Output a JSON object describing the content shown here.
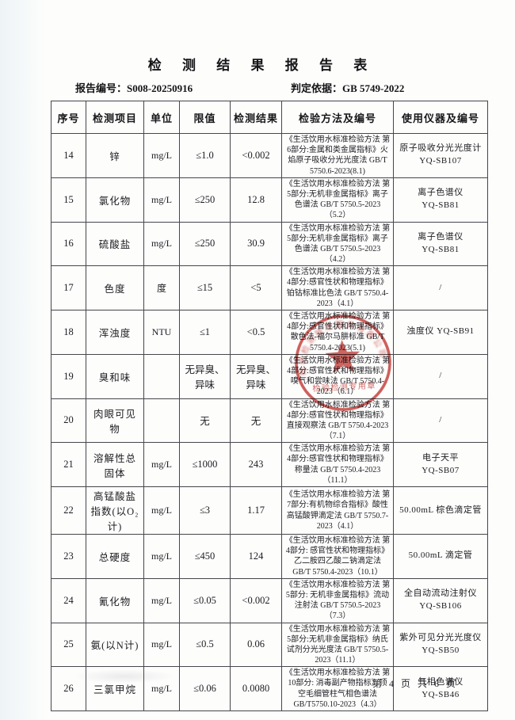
{
  "page": {
    "title": "检 测 结 果 报 告 表",
    "report_no_label": "报告编号：",
    "report_no": "S008-20250916",
    "basis_label": "判定依据：",
    "basis": "GB 5749-2022",
    "footer": "第 4 页 共 6 页"
  },
  "table": {
    "headers": [
      "序号",
      "检测项目",
      "单位",
      "限值",
      "检测结果",
      "检验方法及编号",
      "使用仪器及编号"
    ],
    "rows": [
      {
        "no": "14",
        "item": "锌",
        "unit": "mg/L",
        "limit": "≤1.0",
        "result": "<0.002",
        "method": "《生活饮用水标准检验方法 第6部分:金属和类金属指标》火焰原子吸收分光光度法 GB/T 5750.6-2023(8.1)",
        "instrument": "原子吸收分光光度计 YQ-SB107"
      },
      {
        "no": "15",
        "item": "氯化物",
        "unit": "mg/L",
        "limit": "≤250",
        "result": "12.8",
        "method": "《生活饮用水标准检验方法 第5部分:无机非金属指标》离子色谱法\nGB/T 5750.5-2023（5.2）",
        "instrument": "离子色谱仪\nYQ-SB81"
      },
      {
        "no": "16",
        "item": "硫酸盐",
        "unit": "mg/L",
        "limit": "≤250",
        "result": "30.9",
        "method": "《生活饮用水标准检验方法 第5部分:无机非金属指标》离子色谱法\nGB/T 5750.5-2023（4.2）",
        "instrument": "离子色谱仪\nYQ-SB81"
      },
      {
        "no": "17",
        "item": "色度",
        "unit": "度",
        "limit": "≤15",
        "result": "<5",
        "method": "《生活饮用水标准检验方法 第4部分:感官性状和物理指标》铂钴标准比色法 GB/T 5750.4-2023（4.1）",
        "instrument": "/"
      },
      {
        "no": "18",
        "item": "浑浊度",
        "unit": "NTU",
        "limit": "≤1",
        "result": "<0.5",
        "method": "《生活饮用水标准检验方法 第4部分:感官性状和物理指标》散色法-福尔马肼标准 GB/T 5750.4-2023(5.1)",
        "instrument": "浊度仪 YQ-SB91"
      },
      {
        "no": "19",
        "item": "臭和味",
        "unit": "",
        "limit": "无异臭、\n异味",
        "result": "无异臭、\n异味",
        "method": "《生活饮用水标准检验方法 第4部分:感官性状和物理指标》嗅气和尝味法\nGB/T 5750.4-2023（6.1）",
        "instrument": "/"
      },
      {
        "no": "20",
        "item": "肉眼可见物",
        "unit": "",
        "limit": "无",
        "result": "无",
        "method": "《生活饮用水标准检验方法 第4部分:感官性状和物理指标》直接观察法\nGB/T 5750.4-2023（7.1）",
        "instrument": "/"
      },
      {
        "no": "21",
        "item": "溶解性总固体",
        "unit": "mg/L",
        "limit": "≤1000",
        "result": "243",
        "method": "《生活饮用水标准检验方法 第4部分:感官性状和物理指标》称量法\nGB/T 5750.4-2023（11.1）",
        "instrument": "电子天平\nYQ-SB07"
      },
      {
        "no": "22",
        "item": "高锰酸盐指数(以O₂计)",
        "unit": "mg/L",
        "limit": "≤3",
        "result": "1.17",
        "method": "《生活饮用水标准检验方法 第7部分:有机物综合指标》酸性高锰酸钾滴定法 GB/T 5750.7-2023（4.1）",
        "instrument": "50.00mL 棕色滴定管"
      },
      {
        "no": "23",
        "item": "总硬度",
        "unit": "mg/L",
        "limit": "≤450",
        "result": "124",
        "method": "《生活饮用水标准检验方法 第4部分: 感官性状和物理指标》乙二胺四乙酸二钠滴定法 GB/T 5750.4-2023（10.1）",
        "instrument": "50.00mL 滴定管"
      },
      {
        "no": "24",
        "item": "氰化物",
        "unit": "mg/L",
        "limit": "≤0.05",
        "result": "<0.002",
        "method": "《生活饮用水标准检验方法 第5部分: 无机非金属指标》流动注射法\nGB/T 5750.5-2023（7.3）",
        "instrument": "全自动流动注射仪\nYQ-SB106"
      },
      {
        "no": "25",
        "item": "氨(以N计)",
        "unit": "mg/L",
        "limit": "≤0.5",
        "result": "0.06",
        "method": "《生活饮用水标准检验方法 第5部分:无机非金属指标》纳氏试剂分光光度法 GB/T 5750.5-2023（11.1）",
        "instrument": "紫外可见分光光度仪\nYQ-SB50"
      },
      {
        "no": "26",
        "item": "三氯甲烷",
        "unit": "mg/L",
        "limit": "≤0.06",
        "result": "0.0080",
        "method": "《生活饮用水标准检验方法 第10部分: 消毒副产物指标》顶空毛细管柱气相色谱法 GB/T5750.10-2023（4.3）",
        "instrument": "气相色谱仪\nYQ-SB46"
      }
    ]
  },
  "seal": {
    "top_text_illegible": "检验检测技术服务有限公司",
    "bottom_text": "检验检测专用章",
    "color": "#c43a36"
  }
}
